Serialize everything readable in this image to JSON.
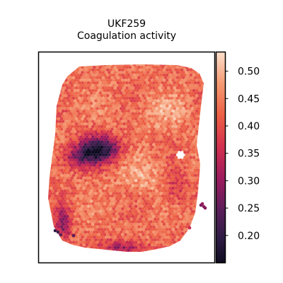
{
  "chart_data": {
    "type": "heatmap",
    "title": "UKF259",
    "subtitle": "Coagulation activity",
    "xlabel": "",
    "ylabel": "",
    "colorbar": {
      "colormap": "rocket",
      "range": [
        0.15,
        0.535
      ],
      "ticks": [
        0.2,
        0.25,
        0.3,
        0.35,
        0.4,
        0.45,
        0.5
      ],
      "tick_labels": [
        "0.20",
        "0.25",
        "0.30",
        "0.35",
        "0.40",
        "0.45",
        "0.50"
      ]
    },
    "spots": "hexagonal spatial transcriptomics spots colored by Coagulation activity score",
    "low_region": "dark cluster at upper-left of tissue (min ~0.16)",
    "typical_value": 0.43,
    "grid": false,
    "legend": "colorbar at right"
  }
}
